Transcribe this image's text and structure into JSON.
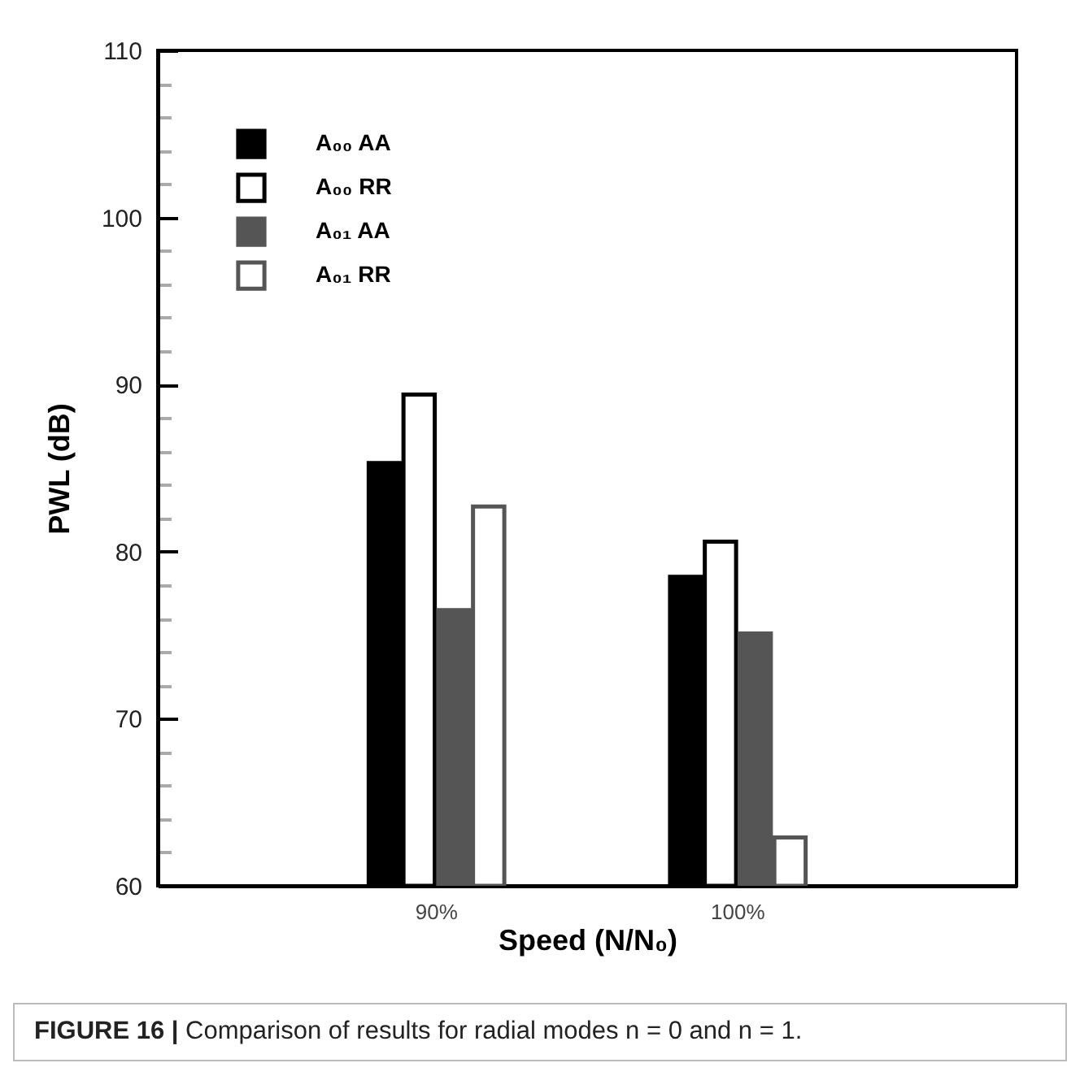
{
  "chart_data": {
    "type": "bar",
    "xlabel": "Speed (N/N₀)",
    "ylabel": "PWL (dB)",
    "categories": [
      "90%",
      "100%"
    ],
    "series": [
      {
        "name": "A₀₀  AA",
        "color": "#000000",
        "values": [
          85.3,
          78.5
        ]
      },
      {
        "name": "A₀₀  RR",
        "color": "#ffffff",
        "values": [
          89.4,
          80.6
        ]
      },
      {
        "name": "A₀₁  AA",
        "color": "#555555",
        "values": [
          76.5,
          75.1
        ]
      },
      {
        "name": "A₀₁  RR",
        "color": "#ffffff",
        "values": [
          82.7,
          62.9
        ]
      }
    ],
    "ylim": [
      60,
      110
    ],
    "yticks": [
      60,
      {
        "value": 62,
        "label": null
      },
      {
        "value": 64,
        "label": null
      },
      {
        "value": 66,
        "label": null
      },
      {
        "value": 68,
        "label": null
      },
      70,
      {
        "value": 72,
        "label": null
      },
      {
        "value": 74,
        "label": null
      },
      {
        "value": 76,
        "label": null
      },
      {
        "value": 78,
        "label": null
      },
      80,
      {
        "value": 82,
        "label": null
      },
      {
        "value": 84,
        "label": null
      },
      {
        "value": 86,
        "label": null
      },
      {
        "value": 88,
        "label": null
      },
      90,
      {
        "value": 92,
        "label": null
      },
      {
        "value": 94,
        "label": null
      },
      {
        "value": 96,
        "label": null
      },
      {
        "value": 98,
        "label": null
      },
      100,
      {
        "value": 102,
        "label": null
      },
      {
        "value": 104,
        "label": null
      },
      {
        "value": 106,
        "label": null
      },
      {
        "value": 108,
        "label": null
      },
      110
    ],
    "legend": "top left",
    "annotations": [
      "FIGURE 16 | Comparison of results for radial modes n = 0 and n = 1."
    ]
  }
}
